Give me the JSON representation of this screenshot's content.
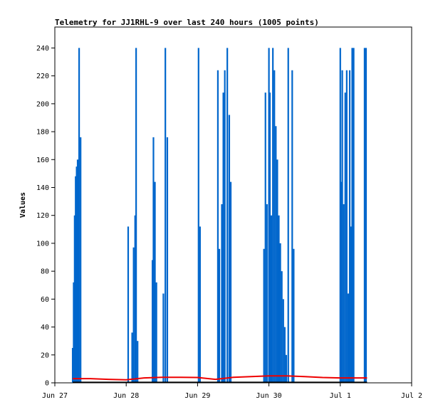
{
  "chart_data": {
    "type": "line",
    "title": "Telemetry for JJ1RHL-9 over last 240 hours (1005 points)",
    "xlabel": "",
    "ylabel": "Values",
    "x_axis": {
      "type": "date",
      "range": [
        "2023-06-27",
        "2023-07-02"
      ],
      "ticks": [
        {
          "date": "2023-06-27",
          "label": "Jun 27"
        },
        {
          "date": "2023-06-28",
          "label": "Jun 28"
        },
        {
          "date": "2023-06-29",
          "label": "Jun 29"
        },
        {
          "date": "2023-06-30",
          "label": "Jun 30"
        },
        {
          "date": "2023-07-01",
          "label": "Jul 1"
        },
        {
          "date": "2023-07-02",
          "label": "Jul 2"
        }
      ]
    },
    "y_axis": {
      "range": [
        0,
        255
      ],
      "ticks": [
        0,
        20,
        40,
        60,
        80,
        100,
        120,
        140,
        160,
        180,
        200,
        220,
        240
      ]
    },
    "grid": false,
    "legend": "none",
    "series": [
      {
        "color": "#0066cc",
        "style": "spikes",
        "points": [
          [
            "2023-06-27 06:00",
            25
          ],
          [
            "2023-06-27 06:20",
            72
          ],
          [
            "2023-06-27 06:40",
            120
          ],
          [
            "2023-06-27 07:00",
            148
          ],
          [
            "2023-06-27 07:20",
            155
          ],
          [
            "2023-06-27 07:40",
            160
          ],
          [
            "2023-06-27 08:10",
            240
          ],
          [
            "2023-06-27 08:40",
            176
          ],
          [
            "2023-06-28 00:40",
            112
          ],
          [
            "2023-06-28 02:00",
            36
          ],
          [
            "2023-06-28 02:30",
            97
          ],
          [
            "2023-06-28 03:00",
            120
          ],
          [
            "2023-06-28 03:20",
            240
          ],
          [
            "2023-06-28 03:50",
            30
          ],
          [
            "2023-06-28 08:50",
            88
          ],
          [
            "2023-06-28 09:10",
            176
          ],
          [
            "2023-06-28 09:40",
            144
          ],
          [
            "2023-06-28 10:10",
            72
          ],
          [
            "2023-06-28 12:30",
            64
          ],
          [
            "2023-06-28 13:10",
            240
          ],
          [
            "2023-06-28 13:50",
            176
          ],
          [
            "2023-06-29 00:20",
            240
          ],
          [
            "2023-06-29 00:50",
            112
          ],
          [
            "2023-06-29 06:50",
            224
          ],
          [
            "2023-06-29 07:20",
            96
          ],
          [
            "2023-06-29 08:10",
            128
          ],
          [
            "2023-06-29 08:40",
            208
          ],
          [
            "2023-06-29 09:10",
            224
          ],
          [
            "2023-06-29 10:00",
            240
          ],
          [
            "2023-06-29 10:40",
            192
          ],
          [
            "2023-06-29 11:10",
            144
          ],
          [
            "2023-06-29 22:20",
            96
          ],
          [
            "2023-06-29 22:50",
            208
          ],
          [
            "2023-06-29 23:20",
            128
          ],
          [
            "2023-06-30 00:00",
            240
          ],
          [
            "2023-06-30 00:20",
            208
          ],
          [
            "2023-06-30 00:50",
            120
          ],
          [
            "2023-06-30 01:20",
            240
          ],
          [
            "2023-06-30 01:50",
            224
          ],
          [
            "2023-06-30 02:20",
            184
          ],
          [
            "2023-06-30 02:50",
            160
          ],
          [
            "2023-06-30 03:20",
            120
          ],
          [
            "2023-06-30 03:50",
            100
          ],
          [
            "2023-06-30 04:20",
            80
          ],
          [
            "2023-06-30 04:50",
            60
          ],
          [
            "2023-06-30 05:20",
            40
          ],
          [
            "2023-06-30 05:50",
            20
          ],
          [
            "2023-06-30 06:30",
            240
          ],
          [
            "2023-06-30 07:50",
            224
          ],
          [
            "2023-06-30 08:20",
            96
          ],
          [
            "2023-07-01 00:00",
            240
          ],
          [
            "2023-07-01 00:20",
            144
          ],
          [
            "2023-07-01 00:40",
            224
          ],
          [
            "2023-07-01 01:10",
            128
          ],
          [
            "2023-07-01 01:40",
            208
          ],
          [
            "2023-07-01 02:10",
            224
          ],
          [
            "2023-07-01 02:40",
            64
          ],
          [
            "2023-07-01 03:10",
            224
          ],
          [
            "2023-07-01 03:40",
            112
          ],
          [
            "2023-07-01 04:00",
            240
          ],
          [
            "2023-07-01 04:30",
            240
          ],
          [
            "2023-07-01 08:10",
            240
          ],
          [
            "2023-07-01 08:40",
            240
          ]
        ]
      },
      {
        "color": "#ee0000",
        "style": "line",
        "points": [
          [
            "2023-06-27 06:00",
            3.0
          ],
          [
            "2023-06-27 12:00",
            3.0
          ],
          [
            "2023-06-27 18:00",
            2.5
          ],
          [
            "2023-06-28 00:00",
            2.2
          ],
          [
            "2023-06-28 06:00",
            3.5
          ],
          [
            "2023-06-28 12:00",
            4.0
          ],
          [
            "2023-06-28 18:00",
            4.0
          ],
          [
            "2023-06-29 00:00",
            3.8
          ],
          [
            "2023-06-29 06:00",
            2.5
          ],
          [
            "2023-06-29 12:00",
            4.0
          ],
          [
            "2023-06-29 18:00",
            4.5
          ],
          [
            "2023-06-30 00:00",
            5.0
          ],
          [
            "2023-06-30 06:00",
            5.0
          ],
          [
            "2023-06-30 12:00",
            4.5
          ],
          [
            "2023-06-30 18:00",
            3.8
          ],
          [
            "2023-07-01 00:00",
            3.5
          ],
          [
            "2023-07-01 06:00",
            3.5
          ],
          [
            "2023-07-01 09:00",
            3.5
          ]
        ]
      },
      {
        "color": "#000000",
        "style": "line",
        "points": [
          [
            "2023-06-27 06:00",
            0.3
          ],
          [
            "2023-06-28 12:00",
            0.3
          ],
          [
            "2023-06-30 00:00",
            0.3
          ],
          [
            "2023-07-01 09:00",
            0.3
          ]
        ]
      }
    ]
  }
}
